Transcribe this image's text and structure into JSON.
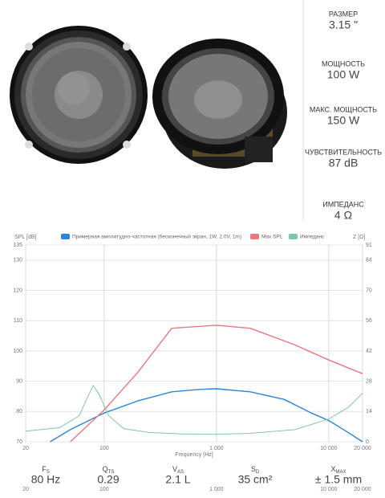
{
  "specs": [
    {
      "label": "РАЗМЕР",
      "value": "3.15 \""
    },
    {
      "label": "МОЩНОСТЬ",
      "value": "100 W"
    },
    {
      "label": "МАКС. МОЩНОСТЬ",
      "value": "150 W"
    },
    {
      "label": "ЧУВСТВИТЕЛЬНОСТЬ",
      "value": "87 dB"
    },
    {
      "label": "ИМПЕДАНС",
      "value": "4 Ω"
    }
  ],
  "chart_data": {
    "type": "line",
    "ylabel": "SPL [dB]",
    "y2label": "Z [Ω]",
    "xlabel": "Frequency [Hz]",
    "xscale": "log",
    "xlim": [
      20,
      20000
    ],
    "xticks": [
      20,
      100,
      {
        "value": 1000,
        "label": "1 000"
      },
      {
        "value": 10000,
        "label": "10 000"
      },
      {
        "value": 20000,
        "label": "20 000"
      }
    ],
    "ylim": [
      70,
      135
    ],
    "yticks": [
      70,
      80,
      90,
      100,
      110,
      120,
      130,
      135
    ],
    "y2lim": [
      0,
      91
    ],
    "y2ticks": [
      0,
      14,
      28,
      42,
      56,
      70,
      84,
      91
    ],
    "grid": true,
    "series": [
      {
        "name": "Примерная амплитудно-частотная (бесконечный экран, 1W, 2.0V, 1m)",
        "color": "#2a86d8",
        "x": [
          33,
          50,
          100,
          200,
          400,
          700,
          1000,
          2000,
          4000,
          7000,
          10000,
          15000,
          20000
        ],
        "values": [
          70,
          74,
          79.5,
          83.5,
          86.5,
          87.3,
          87.5,
          86.5,
          84,
          79.5,
          77,
          73,
          70
        ]
      },
      {
        "name": "Max SPL",
        "color": "#e8787c",
        "x": [
          50,
          100,
          200,
          400,
          1000,
          2000,
          5000,
          10000,
          20000
        ],
        "values": [
          70,
          80.5,
          93,
          107.5,
          108.5,
          107.5,
          102,
          97,
          92.5
        ]
      },
      {
        "name": "Импеданс",
        "color": "#7cc6b0",
        "axis": "y2",
        "x": [
          20,
          40,
          60,
          70,
          80,
          90,
          110,
          150,
          250,
          500,
          1000,
          2000,
          5000,
          10000,
          15000,
          20000
        ],
        "values": [
          4.9,
          6.5,
          12,
          20,
          26,
          22,
          12,
          6,
          4.3,
          3.6,
          3.5,
          3.9,
          5.6,
          10.5,
          16,
          22.4
        ]
      }
    ]
  },
  "params": [
    {
      "symbol": "F",
      "sub": "S",
      "value": "80 Hz"
    },
    {
      "symbol": "Q",
      "sub": "TS",
      "value": "0.29"
    },
    {
      "symbol": "V",
      "sub": "AS",
      "value": "2.1 L"
    },
    {
      "symbol": "S",
      "sub": "D",
      "value": "35 cm²"
    },
    {
      "symbol": "X",
      "sub": "MAX",
      "value": "± 1.5 mm"
    }
  ]
}
